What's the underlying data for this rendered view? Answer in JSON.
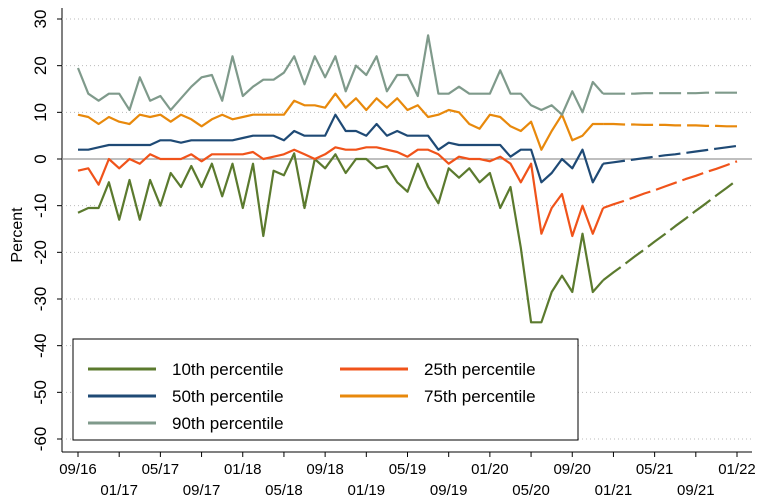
{
  "chart_data": {
    "type": "line",
    "y_label": "Percent",
    "categories": [
      "09/16",
      null,
      null,
      null,
      "01/17",
      null,
      null,
      null,
      "05/17",
      null,
      null,
      null,
      "09/17",
      null,
      null,
      null,
      "01/18",
      null,
      null,
      null,
      "05/18",
      null,
      null,
      null,
      "09/18",
      null,
      null,
      null,
      "01/19",
      null,
      null,
      null,
      "05/19",
      null,
      null,
      null,
      "09/19",
      null,
      null,
      null,
      "01/20",
      null,
      null,
      null,
      "05/20",
      null,
      null,
      null,
      "09/20",
      null,
      null,
      null,
      "01/21",
      null,
      null,
      null,
      "05/21",
      null,
      null,
      null,
      "09/21",
      null,
      null,
      null,
      "01/22"
    ],
    "ylim": [
      -60,
      30
    ],
    "yticks": [
      -60,
      -50,
      -40,
      -30,
      -20,
      -10,
      0,
      10,
      20,
      30
    ],
    "grid": true,
    "series": [
      {
        "name": "10th percentile",
        "color": "#5b7a2e",
        "values": [
          -11.5,
          -10.5,
          -10.5,
          -5,
          -13,
          -4.5,
          -13,
          -4.5,
          -10,
          -3,
          -6,
          -1.5,
          -6,
          -1,
          -8,
          -1,
          -10.5,
          -1,
          -16.5,
          -2.5,
          -3.5,
          1.2,
          -10.5,
          0,
          -2,
          1,
          -3,
          0,
          0,
          -2,
          -1.5,
          -5,
          -7,
          -1,
          -6,
          -9.5,
          -2,
          -4,
          -2,
          -5,
          -3,
          -10.5,
          -6,
          -19,
          -35,
          -35,
          -28.5,
          -25,
          -28.5,
          -16,
          -28.5,
          -26,
          null,
          null,
          null,
          null,
          null,
          null,
          null,
          null,
          null,
          null,
          null,
          null,
          null
        ],
        "forecast": [
          null,
          null,
          null,
          null,
          null,
          null,
          null,
          null,
          null,
          null,
          null,
          null,
          null,
          null,
          null,
          null,
          null,
          null,
          null,
          null,
          null,
          null,
          null,
          null,
          null,
          null,
          null,
          null,
          null,
          null,
          null,
          null,
          null,
          null,
          null,
          null,
          null,
          null,
          null,
          null,
          null,
          null,
          null,
          null,
          null,
          null,
          null,
          null,
          null,
          null,
          null,
          -26,
          -24.3,
          -22.7,
          -21,
          -19.4,
          -17.7,
          -16.1,
          -14.4,
          -12.8,
          -11.1,
          -9.5,
          -7.8,
          -6.2,
          -4.5
        ]
      },
      {
        "name": "25th percentile",
        "color": "#f0531a",
        "values": [
          -2.5,
          -2,
          -5.5,
          0,
          -2,
          0,
          -1,
          1,
          0,
          0,
          0,
          1,
          -0.5,
          1,
          1,
          1,
          1,
          1.5,
          0,
          0.5,
          1,
          2,
          1,
          0,
          1,
          2.5,
          2,
          2,
          2.5,
          2.5,
          2,
          1.5,
          0.5,
          2,
          2,
          1,
          -1,
          0.5,
          0,
          0,
          -0.5,
          0.5,
          -1,
          -5,
          -1,
          -16,
          -10.5,
          -7.5,
          -16.5,
          -10,
          -16,
          -10.5,
          null,
          null,
          null,
          null,
          null,
          null,
          null,
          null,
          null,
          null,
          null,
          null,
          null
        ],
        "forecast": [
          null,
          null,
          null,
          null,
          null,
          null,
          null,
          null,
          null,
          null,
          null,
          null,
          null,
          null,
          null,
          null,
          null,
          null,
          null,
          null,
          null,
          null,
          null,
          null,
          null,
          null,
          null,
          null,
          null,
          null,
          null,
          null,
          null,
          null,
          null,
          null,
          null,
          null,
          null,
          null,
          null,
          null,
          null,
          null,
          null,
          null,
          null,
          null,
          null,
          null,
          null,
          -10.5,
          -9.7,
          -9,
          -8.2,
          -7.4,
          -6.7,
          -5.9,
          -5.1,
          -4.3,
          -3.6,
          -2.8,
          -2.1,
          -1.3,
          -0.5
        ]
      },
      {
        "name": "50th percentile",
        "color": "#1f4a75",
        "values": [
          2,
          2,
          2.5,
          3,
          3,
          3,
          3,
          3,
          4,
          4,
          3.5,
          4,
          4,
          4,
          4,
          4,
          4.5,
          5,
          5,
          5,
          4,
          6,
          5,
          5,
          5,
          9.5,
          6,
          6,
          5,
          7.5,
          5,
          6,
          5,
          5,
          5,
          2,
          3.5,
          3,
          3,
          3,
          3,
          3,
          0.5,
          2,
          2,
          -5,
          -3,
          0,
          -2,
          2,
          -5,
          -1,
          null,
          null,
          null,
          null,
          null,
          null,
          null,
          null,
          null,
          null,
          null,
          null,
          null
        ],
        "forecast": [
          null,
          null,
          null,
          null,
          null,
          null,
          null,
          null,
          null,
          null,
          null,
          null,
          null,
          null,
          null,
          null,
          null,
          null,
          null,
          null,
          null,
          null,
          null,
          null,
          null,
          null,
          null,
          null,
          null,
          null,
          null,
          null,
          null,
          null,
          null,
          null,
          null,
          null,
          null,
          null,
          null,
          null,
          null,
          null,
          null,
          null,
          null,
          null,
          null,
          null,
          null,
          -1,
          -0.7,
          -0.4,
          -0.1,
          0.2,
          0.5,
          0.8,
          1,
          1.3,
          1.6,
          1.9,
          2.2,
          2.5,
          2.8
        ]
      },
      {
        "name": "75th percentile",
        "color": "#e8890c",
        "values": [
          9.5,
          9,
          7.5,
          9,
          8,
          7.5,
          9.5,
          9,
          9.5,
          8,
          9.5,
          8.5,
          7,
          8.5,
          9.5,
          8.5,
          9,
          9.5,
          9.5,
          9.5,
          9.5,
          12.5,
          11.5,
          11.5,
          11,
          14,
          11,
          13,
          10.5,
          13,
          11,
          13,
          10.5,
          11.5,
          9,
          9.5,
          10.5,
          10,
          7.5,
          6.5,
          9.5,
          9,
          7,
          6,
          8,
          2,
          6,
          9.5,
          4,
          5,
          7.5,
          7.5,
          null,
          null,
          null,
          null,
          null,
          null,
          null,
          null,
          null,
          null,
          null,
          null,
          null
        ],
        "forecast": [
          null,
          null,
          null,
          null,
          null,
          null,
          null,
          null,
          null,
          null,
          null,
          null,
          null,
          null,
          null,
          null,
          null,
          null,
          null,
          null,
          null,
          null,
          null,
          null,
          null,
          null,
          null,
          null,
          null,
          null,
          null,
          null,
          null,
          null,
          null,
          null,
          null,
          null,
          null,
          null,
          null,
          null,
          null,
          null,
          null,
          null,
          null,
          null,
          null,
          null,
          null,
          7.5,
          7.5,
          7.4,
          7.4,
          7.3,
          7.3,
          7.3,
          7.2,
          7.2,
          7.2,
          7.1,
          7.1,
          7,
          7
        ]
      },
      {
        "name": "90th percentile",
        "color": "#7f9a8b",
        "values": [
          19.5,
          14,
          12.5,
          14,
          14,
          10.5,
          17.5,
          12.5,
          13.5,
          10.5,
          13,
          15.5,
          17.5,
          18,
          12.5,
          22,
          13.5,
          15.5,
          17,
          17,
          18.5,
          22,
          16,
          22,
          17.5,
          22,
          14.5,
          20,
          18,
          22,
          14.5,
          18,
          18,
          13.5,
          26.5,
          14,
          14,
          15.5,
          14,
          14,
          14,
          19,
          14,
          14,
          11.5,
          10.5,
          11.5,
          9.5,
          14.5,
          10,
          16.5,
          14,
          null,
          null,
          null,
          null,
          null,
          null,
          null,
          null,
          null,
          null,
          null,
          null,
          null
        ],
        "forecast": [
          null,
          null,
          null,
          null,
          null,
          null,
          null,
          null,
          null,
          null,
          null,
          null,
          null,
          null,
          null,
          null,
          null,
          null,
          null,
          null,
          null,
          null,
          null,
          null,
          null,
          null,
          null,
          null,
          null,
          null,
          null,
          null,
          null,
          null,
          null,
          null,
          null,
          null,
          null,
          null,
          null,
          null,
          null,
          null,
          null,
          null,
          null,
          null,
          null,
          null,
          null,
          14,
          14,
          14,
          14,
          14.1,
          14.1,
          14.1,
          14.1,
          14.1,
          14.1,
          14.2,
          14.2,
          14.2,
          14.2
        ]
      }
    ]
  }
}
